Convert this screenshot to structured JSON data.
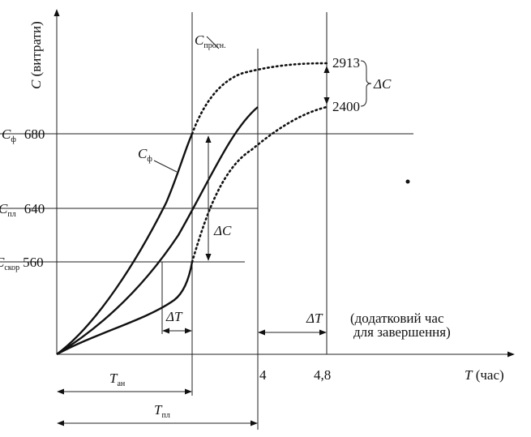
{
  "y_axis": {
    "symbol": "C",
    "note": "(витрати)"
  },
  "x_axis": {
    "symbol": "T",
    "note": "(час)",
    "ticks": [
      "4",
      "4,8"
    ]
  },
  "levels": [
    {
      "symbol": "C",
      "sub": "ф",
      "value": "680"
    },
    {
      "symbol": "C",
      "sub": "пл",
      "value": "640"
    },
    {
      "symbol": "C",
      "sub": "скор",
      "value": "560"
    }
  ],
  "curve_labels": {
    "forecast": {
      "symbol": "C",
      "sub": "прогн."
    },
    "actual": {
      "symbol": "C",
      "sub": "ф"
    }
  },
  "end_values": [
    "2913",
    "2400"
  ],
  "delta_c": [
    "ΔC",
    "ΔC"
  ],
  "delta_t": [
    "ΔT",
    "ΔT"
  ],
  "extra_time_note": [
    "(додатковий час",
    "для завершення)"
  ],
  "durations": [
    {
      "symbol": "T",
      "sub": "ан"
    },
    {
      "symbol": "T",
      "sub": "пл"
    }
  ]
}
